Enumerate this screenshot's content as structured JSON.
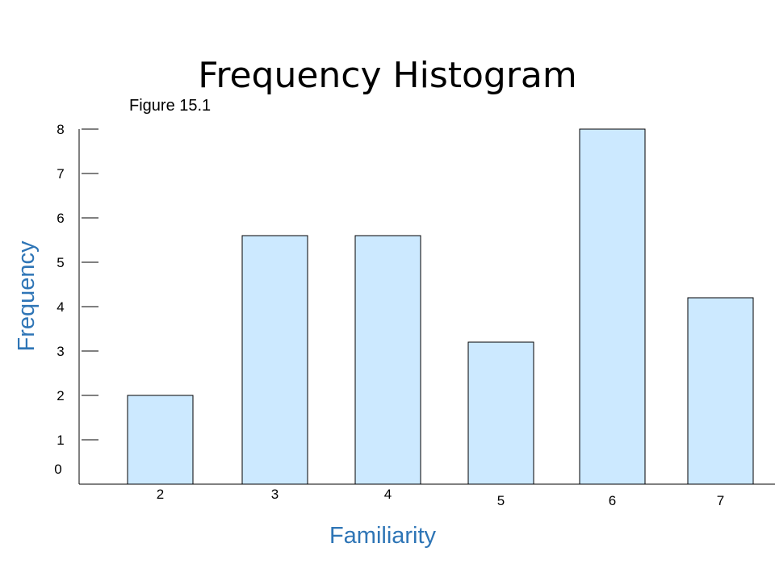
{
  "chart_data": {
    "type": "bar",
    "title": "Frequency Histogram",
    "subtitle": "Figure 15.1",
    "xlabel": "Familiarity",
    "ylabel": "Frequency",
    "categories": [
      "2",
      "3",
      "4",
      "5",
      "6",
      "7"
    ],
    "values": [
      2,
      5.6,
      5.6,
      3.2,
      8,
      4.2
    ],
    "ylim": [
      0,
      8
    ],
    "yticks": [
      "0",
      "1",
      "2",
      "3",
      "4",
      "5",
      "6",
      "7",
      "8"
    ],
    "grid": false,
    "legend": "none",
    "colors": {
      "bar_fill": "#cce9ff",
      "bar_stroke": "#000000",
      "axis_title": "#2e75b6"
    }
  }
}
